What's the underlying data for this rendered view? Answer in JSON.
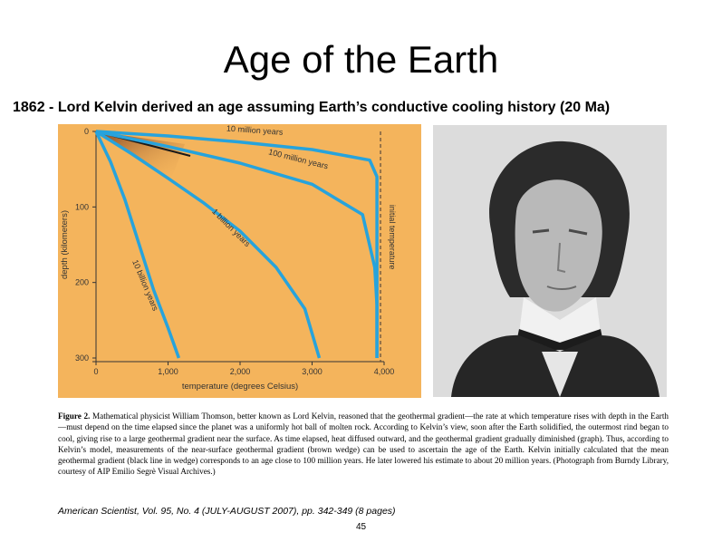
{
  "slide": {
    "title": "Age of the Earth",
    "subtitle": "1862 - Lord Kelvin derived an age assuming Earth’s conductive cooling history (20 Ma)",
    "citation": "American Scientist, Vol. 95, No. 4 (JULY-AUGUST 2007), pp. 342-349 (8 pages)",
    "page_number": "45"
  },
  "figure": {
    "caption_label": "Figure 2.",
    "caption_text": "Mathematical physicist William Thomson, better known as Lord Kelvin, reasoned that the geothermal gradient—the rate at which temperature rises with depth in the Earth—must depend on the time elapsed since the planet was a uniformly hot ball of molten rock. According to Kelvin’s view, soon after the Earth solidified, the outermost rind began to cool, giving rise to a large geothermal gradient near the surface. As time elapsed, heat diffused outward, and the geothermal gradient gradually diminished (graph). Thus, according to Kelvin’s model, measurements of the near-surface geothermal gradient (brown wedge) can be used to ascertain the age of the Earth. Kelvin initially calculated that the mean geothermal gradient (black line in wedge) corresponds to an age close to 100 million years. He later lowered his estimate to about 20 million years. (Photograph from Burndy Library, courtesy of AIP Emilio Segrè Visual Archives.)",
    "colors": {
      "background": "#f4b45c",
      "curve": "#27a3dc",
      "dashed": "#5a4a3a",
      "wedge": "#8b4a2a"
    }
  },
  "chart_data": {
    "type": "line",
    "xlabel": "temperature (degrees Celsius)",
    "ylabel": "depth (kilometers)",
    "xlim": [
      0,
      4000
    ],
    "ylim": [
      0,
      300
    ],
    "y_inverted": true,
    "x_ticks": [
      "0",
      "1,000",
      "2,000",
      "3,000",
      "4,000"
    ],
    "y_ticks": [
      "0",
      "100",
      "200",
      "300"
    ],
    "initial_temperature": {
      "label": "initial temperature",
      "x": 3900
    },
    "series": [
      {
        "name": "10 million years",
        "points": [
          [
            0,
            0
          ],
          [
            1000,
            6
          ],
          [
            2000,
            14
          ],
          [
            3000,
            24
          ],
          [
            3800,
            38
          ],
          [
            3900,
            60
          ],
          [
            3900,
            300
          ]
        ]
      },
      {
        "name": "100 million years",
        "points": [
          [
            0,
            0
          ],
          [
            1000,
            20
          ],
          [
            2000,
            42
          ],
          [
            3000,
            70
          ],
          [
            3700,
            110
          ],
          [
            3870,
            180
          ],
          [
            3900,
            230
          ],
          [
            3900,
            300
          ]
        ]
      },
      {
        "name": "1 billion years",
        "points": [
          [
            0,
            0
          ],
          [
            500,
            30
          ],
          [
            1000,
            62
          ],
          [
            1500,
            95
          ],
          [
            2000,
            132
          ],
          [
            2500,
            180
          ],
          [
            2900,
            235
          ],
          [
            3100,
            300
          ]
        ]
      },
      {
        "name": "10 billion years",
        "points": [
          [
            0,
            0
          ],
          [
            200,
            40
          ],
          [
            400,
            90
          ],
          [
            600,
            150
          ],
          [
            800,
            210
          ],
          [
            1000,
            260
          ],
          [
            1150,
            300
          ]
        ]
      }
    ]
  }
}
